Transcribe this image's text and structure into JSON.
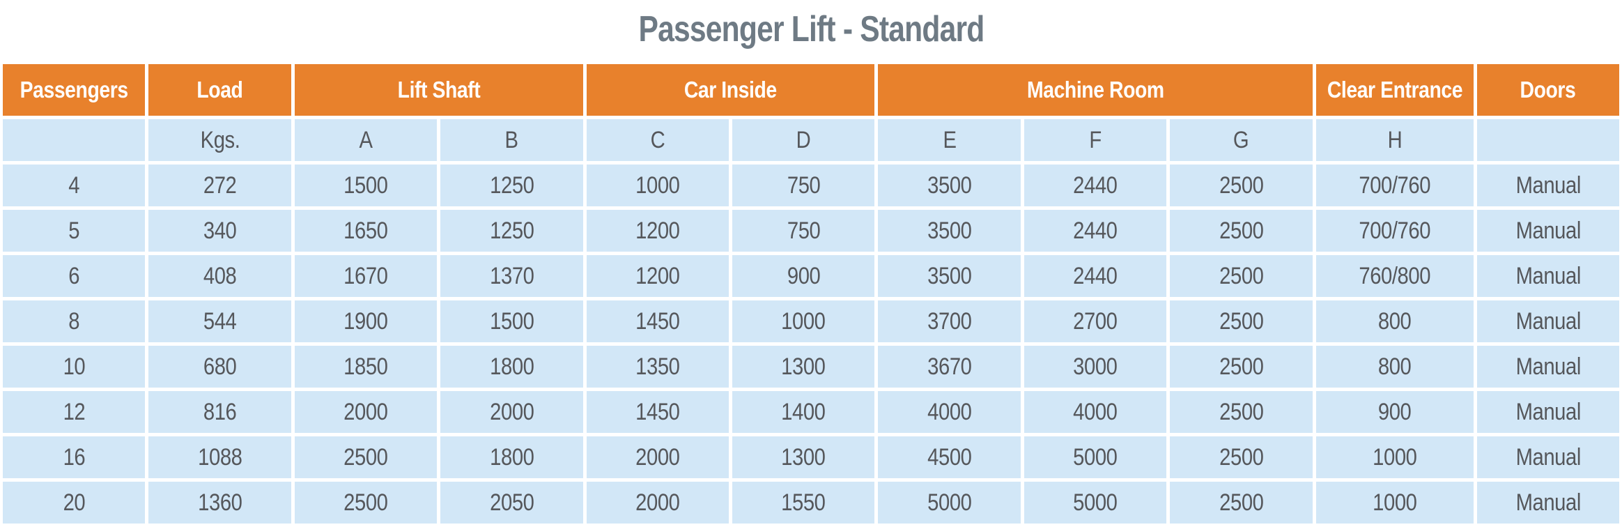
{
  "title": "Passenger Lift - Standard",
  "colors": {
    "header_bg": "#E8812C",
    "row_bg": "#D2E7F7",
    "header_text": "#FFFFFF",
    "cell_text": "#55575B",
    "title_text": "#6E7A84",
    "grid_gap": "#FFFFFF"
  },
  "table": {
    "groups": [
      {
        "label": "Passengers",
        "span": 1
      },
      {
        "label": "Load",
        "span": 1
      },
      {
        "label": "Lift Shaft",
        "span": 2
      },
      {
        "label": "Car Inside",
        "span": 2
      },
      {
        "label": "Machine Room",
        "span": 3
      },
      {
        "label": "Clear Entrance",
        "span": 1
      },
      {
        "label": "Doors",
        "span": 1
      }
    ],
    "subheaders": [
      "",
      "Kgs.",
      "A",
      "B",
      "C",
      "D",
      "E",
      "F",
      "G",
      "H",
      ""
    ],
    "rows": [
      [
        "4",
        "272",
        "1500",
        "1250",
        "1000",
        "750",
        "3500",
        "2440",
        "2500",
        "700/760",
        "Manual"
      ],
      [
        "5",
        "340",
        "1650",
        "1250",
        "1200",
        "750",
        "3500",
        "2440",
        "2500",
        "700/760",
        "Manual"
      ],
      [
        "6",
        "408",
        "1670",
        "1370",
        "1200",
        "900",
        "3500",
        "2440",
        "2500",
        "760/800",
        "Manual"
      ],
      [
        "8",
        "544",
        "1900",
        "1500",
        "1450",
        "1000",
        "3700",
        "2700",
        "2500",
        "800",
        "Manual"
      ],
      [
        "10",
        "680",
        "1850",
        "1800",
        "1350",
        "1300",
        "3670",
        "3000",
        "2500",
        "800",
        "Manual"
      ],
      [
        "12",
        "816",
        "2000",
        "2000",
        "1450",
        "1400",
        "4000",
        "4000",
        "2500",
        "900",
        "Manual"
      ],
      [
        "16",
        "1088",
        "2500",
        "1800",
        "2000",
        "1300",
        "4500",
        "5000",
        "2500",
        "1000",
        "Manual"
      ],
      [
        "20",
        "1360",
        "2500",
        "2050",
        "2000",
        "1550",
        "5000",
        "5000",
        "2500",
        "1000",
        "Manual"
      ]
    ]
  },
  "chart_data": {
    "type": "table",
    "title": "Passenger Lift - Standard",
    "columns": [
      "Passengers",
      "Load (Kgs.)",
      "Lift Shaft A",
      "Lift Shaft B",
      "Car Inside C",
      "Car Inside D",
      "Machine Room E",
      "Machine Room F",
      "Machine Room G",
      "Clear Entrance H",
      "Doors"
    ],
    "rows": [
      [
        4,
        272,
        1500,
        1250,
        1000,
        750,
        3500,
        2440,
        2500,
        "700/760",
        "Manual"
      ],
      [
        5,
        340,
        1650,
        1250,
        1200,
        750,
        3500,
        2440,
        2500,
        "700/760",
        "Manual"
      ],
      [
        6,
        408,
        1670,
        1370,
        1200,
        900,
        3500,
        2440,
        2500,
        "760/800",
        "Manual"
      ],
      [
        8,
        544,
        1900,
        1500,
        1450,
        1000,
        3700,
        2700,
        2500,
        "800",
        "Manual"
      ],
      [
        10,
        680,
        1850,
        1800,
        1350,
        1300,
        3670,
        3000,
        2500,
        "800",
        "Manual"
      ],
      [
        12,
        816,
        2000,
        2000,
        1450,
        1400,
        4000,
        4000,
        2500,
        "900",
        "Manual"
      ],
      [
        16,
        1088,
        2500,
        1800,
        2000,
        1300,
        4500,
        5000,
        2500,
        "1000",
        "Manual"
      ],
      [
        20,
        1360,
        2500,
        2050,
        2000,
        1550,
        5000,
        5000,
        2500,
        "1000",
        "Manual"
      ]
    ]
  }
}
